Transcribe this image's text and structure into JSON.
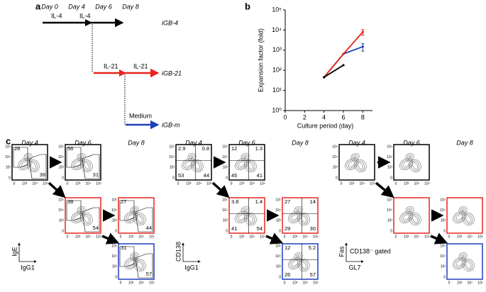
{
  "panel_labels": [
    "a",
    "b",
    "c"
  ],
  "diagram": {
    "days": [
      "Day 0",
      "Day 4",
      "Day 6",
      "Day 8"
    ],
    "tracks": [
      {
        "labels": [
          "IL-4",
          "IL-4"
        ],
        "name": "iGB-4",
        "color": "#000000"
      },
      {
        "labels": [
          "IL-21",
          "IL-21"
        ],
        "name": "iGB-21",
        "color": "#e8231f"
      },
      {
        "labels": [
          "Medium"
        ],
        "name": "iGB-m",
        "color": "#1f3fbf"
      }
    ]
  },
  "chart_data": {
    "type": "line",
    "x_label": "Culture period (day)",
    "y_label": "Expansion factor (fold)",
    "x": [
      4,
      6,
      8
    ],
    "series": [
      {
        "name": "iGB-4",
        "color": "#000000",
        "values": [
          45,
          180,
          null
        ]
      },
      {
        "name": "iGB-21",
        "color": "#e8231f",
        "values": [
          45,
          650,
          8000
        ],
        "errors": [
          null,
          null,
          2500
        ]
      },
      {
        "name": "iGB-m",
        "color": "#1f3fbf",
        "values": [
          45,
          650,
          1500
        ],
        "errors": [
          null,
          null,
          600
        ]
      }
    ],
    "xlim": [
      0,
      9
    ],
    "xticks": [
      0,
      2,
      4,
      6,
      8
    ],
    "ylim": [
      1,
      100000
    ],
    "log_y": true,
    "yticks": [
      {
        "value": 1,
        "label": "10⁰"
      },
      {
        "value": 10,
        "label": "10¹"
      },
      {
        "value": 100,
        "label": "10²"
      },
      {
        "value": 1000,
        "label": "10³"
      },
      {
        "value": 10000,
        "label": "10⁴"
      },
      {
        "value": 100000,
        "label": "10⁵"
      }
    ]
  },
  "flow": {
    "axis_ticks": [
      "0",
      "10³",
      "10⁴",
      "10⁵"
    ],
    "groups": [
      {
        "days": [
          "Day 4",
          "Day 6",
          "Day 8"
        ],
        "y_label": "IgE",
        "x_label": "IgG1",
        "plots": [
          {
            "day": 0,
            "row": 0,
            "color": "#000000",
            "numbers": [
              28,
              38
            ]
          },
          {
            "day": 1,
            "row": 0,
            "color": "#000000",
            "numbers": [
              56,
              31
            ]
          },
          {
            "day": 1,
            "row": 1,
            "color": "#e8231f",
            "numbers": [
              38,
              54
            ]
          },
          {
            "day": 2,
            "row": 1,
            "color": "#e8231f",
            "numbers": [
              27,
              44
            ]
          },
          {
            "day": 2,
            "row": 2,
            "color": "#1f3fbf",
            "numbers": [
              31,
              57
            ]
          }
        ]
      },
      {
        "days": [
          "Day 4",
          "Day 6",
          "Day 8"
        ],
        "y_label": "CD138",
        "x_label": "IgG1",
        "plots": [
          {
            "day": 0,
            "row": 0,
            "color": "#000000",
            "numbers": [
              2.9,
              0.8,
              53,
              44
            ]
          },
          {
            "day": 1,
            "row": 0,
            "color": "#000000",
            "numbers": [
              12,
              1.3,
              45,
              41
            ]
          },
          {
            "day": 1,
            "row": 1,
            "color": "#e8231f",
            "numbers": [
              3.8,
              1.4,
              41,
              54
            ]
          },
          {
            "day": 2,
            "row": 1,
            "color": "#e8231f",
            "numbers": [
              27,
              14,
              29,
              30
            ]
          },
          {
            "day": 2,
            "row": 2,
            "color": "#1f3fbf",
            "numbers": [
              12,
              5.2,
              26,
              57
            ]
          }
        ]
      },
      {
        "days": [
          "Day 4",
          "Day 6",
          "Day 8"
        ],
        "y_label": "Fas",
        "x_label": "GL7",
        "note": "CD138⁻ gated",
        "plots": [
          {
            "day": 0,
            "row": 0,
            "color": "#000000",
            "numbers": []
          },
          {
            "day": 1,
            "row": 0,
            "color": "#000000",
            "numbers": []
          },
          {
            "day": 1,
            "row": 1,
            "color": "#e8231f",
            "numbers": []
          },
          {
            "day": 2,
            "row": 1,
            "color": "#e8231f",
            "numbers": []
          },
          {
            "day": 2,
            "row": 2,
            "color": "#1f3fbf",
            "numbers": []
          }
        ]
      }
    ]
  }
}
